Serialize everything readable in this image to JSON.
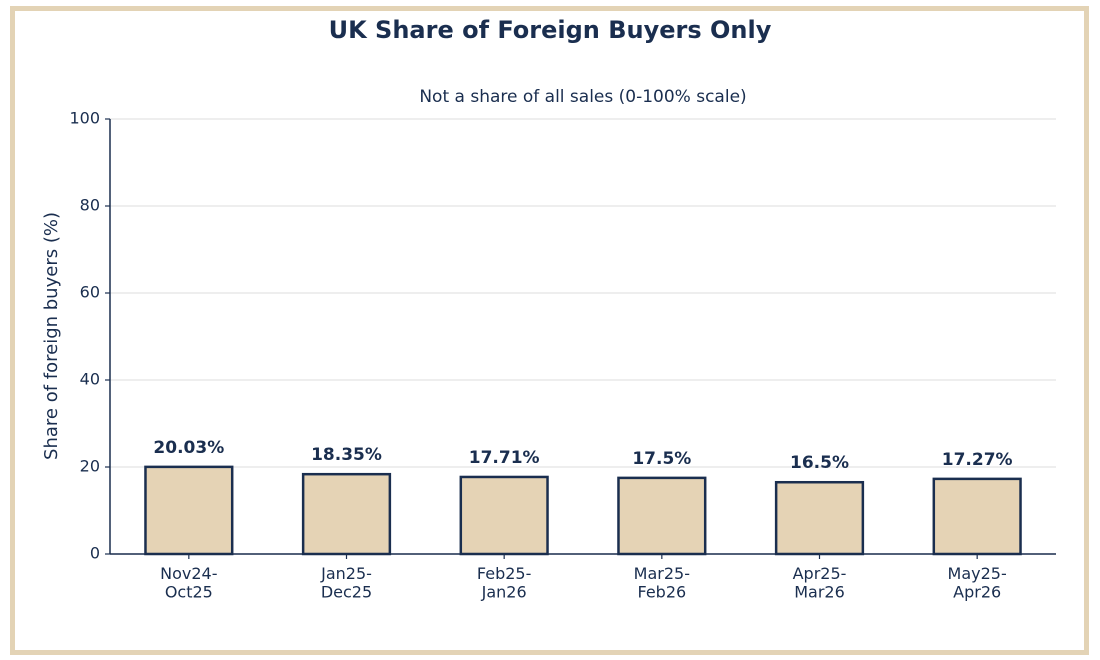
{
  "chart_data": {
    "type": "bar",
    "title": "UK Share of Foreign Buyers Only",
    "subtitle": "Not a share of all sales  (0-100% scale)",
    "y_label": "Share of foreign buyers (%)",
    "categories": [
      "Nov24-\nOct25",
      "Jan25-\nDec25",
      "Feb25-\nJan26",
      "Mar25-\nFeb26",
      "Apr25-\nMar26",
      "May25-\nApr26"
    ],
    "values": [
      20.03,
      18.35,
      17.71,
      17.5,
      16.5,
      17.27
    ],
    "value_labels": [
      "20.03%",
      "18.35%",
      "17.71%",
      "17.5%",
      "16.5%",
      "17.27%"
    ],
    "color": "#e5d3b5",
    "ylim": [
      0,
      100
    ],
    "yticks": [
      0,
      20,
      40,
      60,
      80,
      100
    ],
    "grid": true
  }
}
